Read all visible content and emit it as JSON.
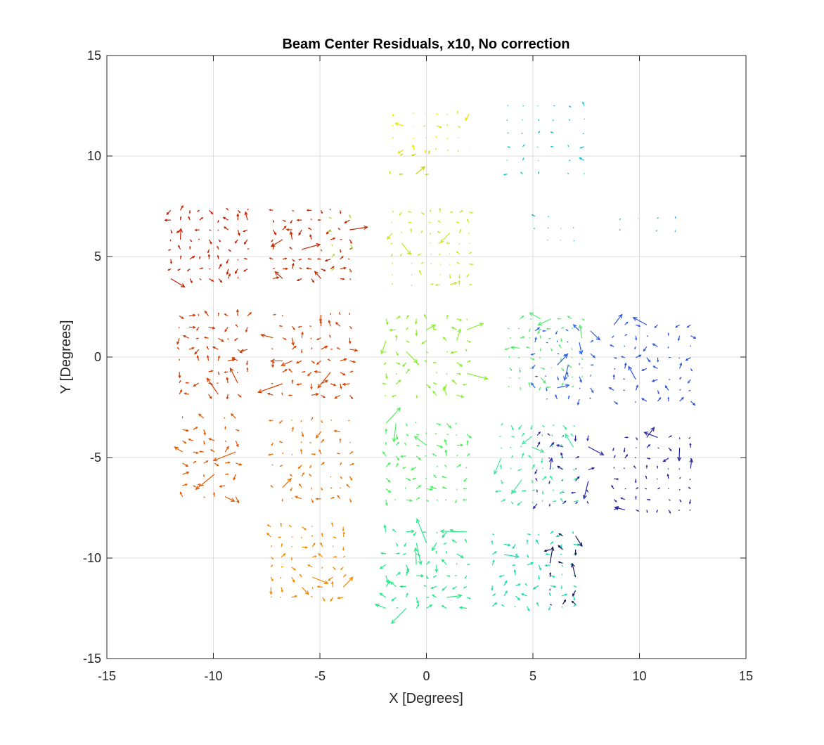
{
  "chart_data": {
    "type": "quiver",
    "title": "Beam Center Residuals, x10, No correction",
    "xlabel": "X [Degrees]",
    "ylabel": "Y [Degrees]",
    "xlim": [
      -15,
      15
    ],
    "ylim": [
      -15,
      15
    ],
    "xticks": [
      -15,
      -10,
      -5,
      0,
      5,
      10,
      15
    ],
    "yticks": [
      -15,
      -10,
      -5,
      0,
      5,
      10,
      15
    ],
    "grid": true,
    "colormap": "jet",
    "arrow_scale": 10,
    "beam_groups": [
      {
        "center": [
          -10.2,
          5.6
        ],
        "size": [
          3.6,
          3.4
        ],
        "rows": 8,
        "cols": 9,
        "color": "#c81e00",
        "spread": 0.22
      },
      {
        "center": [
          -5.4,
          5.6
        ],
        "size": [
          3.6,
          3.4
        ],
        "rows": 8,
        "cols": 9,
        "color": "#c02a00",
        "spread": 0.22
      },
      {
        "center": [
          -4.0,
          5.6
        ],
        "size": [
          0.9,
          2.6
        ],
        "rows": 5,
        "cols": 2,
        "color": "#b4dc2c",
        "spread": 0.2
      },
      {
        "center": [
          -10.0,
          0.1
        ],
        "size": [
          3.2,
          3.9
        ],
        "rows": 8,
        "cols": 8,
        "color": "#d23c00",
        "spread": 0.25
      },
      {
        "center": [
          -5.4,
          0.1
        ],
        "size": [
          3.6,
          4.0
        ],
        "rows": 8,
        "cols": 9,
        "color": "#d94400",
        "spread": 0.3
      },
      {
        "center": [
          -10.2,
          -5.0
        ],
        "size": [
          2.5,
          3.9
        ],
        "rows": 8,
        "cols": 6,
        "color": "#e45a00",
        "spread": 0.28
      },
      {
        "center": [
          -5.4,
          -5.1
        ],
        "size": [
          3.6,
          3.9
        ],
        "rows": 8,
        "cols": 9,
        "color": "#e96e00",
        "spread": 0.18
      },
      {
        "center": [
          -5.6,
          -10.2
        ],
        "size": [
          3.4,
          3.5
        ],
        "rows": 8,
        "cols": 8,
        "color": "#f08c00",
        "spread": 0.22
      },
      {
        "center": [
          0.2,
          11.2
        ],
        "size": [
          3.6,
          1.8
        ],
        "rows": 4,
        "cols": 8,
        "color": "#e8e600",
        "spread": 0.1
      },
      {
        "center": [
          -0.8,
          9.6
        ],
        "size": [
          1.8,
          1.0
        ],
        "rows": 2,
        "cols": 4,
        "color": "#c8d400",
        "spread": 0.16
      },
      {
        "center": [
          0.2,
          5.4
        ],
        "size": [
          3.6,
          3.6
        ],
        "rows": 8,
        "cols": 9,
        "color": "#c8e81c",
        "spread": 0.16
      },
      {
        "center": [
          0.0,
          0.0
        ],
        "size": [
          3.8,
          3.8
        ],
        "rows": 8,
        "cols": 9,
        "color": "#88ee2c",
        "spread": 0.24
      },
      {
        "center": [
          0.0,
          -5.2
        ],
        "size": [
          3.8,
          3.8
        ],
        "rows": 8,
        "cols": 9,
        "color": "#4cf05c",
        "spread": 0.24
      },
      {
        "center": [
          0.0,
          -10.6
        ],
        "size": [
          3.8,
          3.8
        ],
        "rows": 8,
        "cols": 9,
        "color": "#28e888",
        "spread": 0.3
      },
      {
        "center": [
          5.6,
          0.2
        ],
        "size": [
          3.4,
          3.4
        ],
        "rows": 8,
        "cols": 8,
        "color": "#5ce874",
        "spread": 0.18
      },
      {
        "center": [
          5.2,
          -5.3
        ],
        "size": [
          3.4,
          3.8
        ],
        "rows": 8,
        "cols": 8,
        "color": "#3ce89c",
        "spread": 0.2
      },
      {
        "center": [
          5.0,
          -10.6
        ],
        "size": [
          3.8,
          3.6
        ],
        "rows": 8,
        "cols": 8,
        "color": "#1cdcb0",
        "spread": 0.24
      },
      {
        "center": [
          5.6,
          10.8
        ],
        "size": [
          3.6,
          3.4
        ],
        "rows": 6,
        "cols": 6,
        "color": "#18c0d8",
        "spread": 0.1
      },
      {
        "center": [
          6.0,
          6.4
        ],
        "size": [
          1.8,
          1.2
        ],
        "rows": 3,
        "cols": 4,
        "color": "#1cb8e0",
        "spread": 0.06
      },
      {
        "center": [
          10.4,
          6.6
        ],
        "size": [
          2.6,
          0.6
        ],
        "rows": 2,
        "cols": 4,
        "color": "#2a9ae8",
        "spread": 0.08
      },
      {
        "center": [
          6.4,
          -0.4
        ],
        "size": [
          2.6,
          3.4
        ],
        "rows": 7,
        "cols": 6,
        "color": "#2e64e4",
        "spread": 0.24
      },
      {
        "center": [
          10.6,
          -0.3
        ],
        "size": [
          3.6,
          3.8
        ],
        "rows": 8,
        "cols": 8,
        "color": "#2c54dc",
        "spread": 0.22
      },
      {
        "center": [
          6.4,
          -5.6
        ],
        "size": [
          2.4,
          3.4
        ],
        "rows": 7,
        "cols": 5,
        "color": "#2a2aa8",
        "spread": 0.24
      },
      {
        "center": [
          10.6,
          -5.8
        ],
        "size": [
          3.6,
          3.6
        ],
        "rows": 8,
        "cols": 8,
        "color": "#2626a0",
        "spread": 0.18
      },
      {
        "center": [
          6.4,
          -10.6
        ],
        "size": [
          1.2,
          3.4
        ],
        "rows": 6,
        "cols": 3,
        "color": "#141458",
        "spread": 0.24
      }
    ]
  }
}
